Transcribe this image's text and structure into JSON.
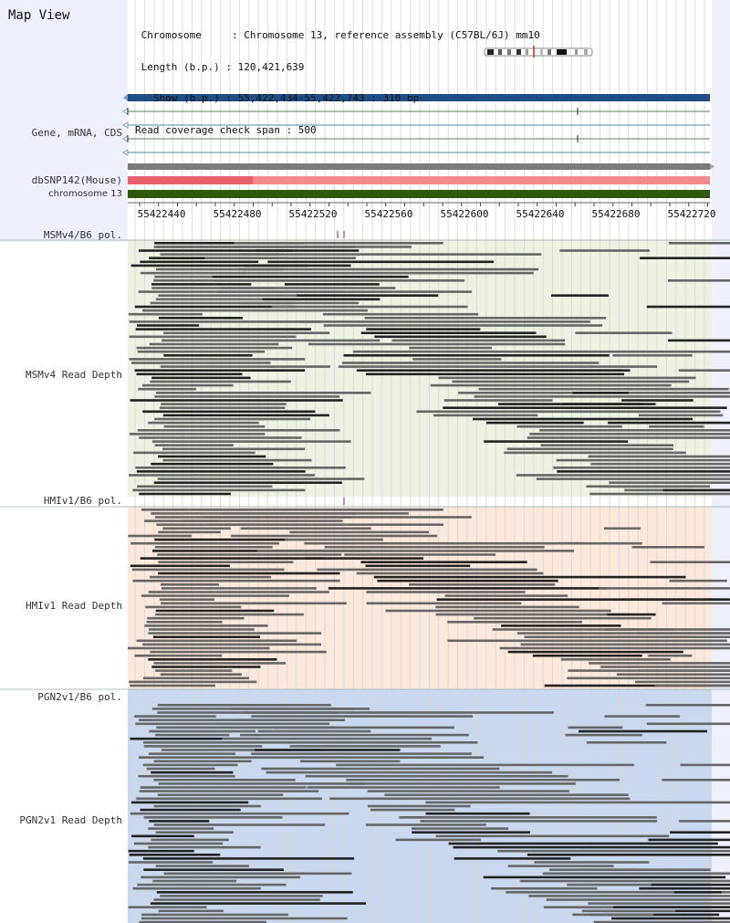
{
  "view": {
    "title": "Map View",
    "info_lines": [
      " Chromosome     : Chromosome 13, reference assembly (C57BL/6J) mm10",
      " Length (b.p.) : 120,421,639",
      "   Show (b.p.) : 55,422,434-55,422,743 : 310 bp",
      "Read coverage check span : 500"
    ]
  },
  "axis": {
    "start": 55422434,
    "end": 55422743,
    "tick_labels": [
      "55422440",
      "55422480",
      "55422520",
      "55422560",
      "55422600",
      "55422640",
      "55422680",
      "55422720"
    ]
  },
  "tracks": {
    "gene_label": "Gene, mRNA, CDS",
    "dbsnp_label": "dbSNP142(Mouse)",
    "chromosome_label": "chromosome 13"
  },
  "strains": [
    {
      "pol_label": "MSMv4/B6 pol.",
      "depth_label": "MSMv4 Read Depth",
      "bg_color": "#eef2e2"
    },
    {
      "pol_label": "HMIv1/B6 pol.",
      "depth_label": "HMIv1 Read Depth",
      "bg_color": "#fce9dc"
    },
    {
      "pol_label": "PGN2v1/B6 pol.",
      "depth_label": "PGN2v1 Read Depth",
      "bg_color": "#c8d9ef"
    }
  ],
  "colors": {
    "gene_blue": "#1f4e86",
    "snp_pink": "#f48a90",
    "snp_red": "#e8606c",
    "chromosome_green": "#2f5a0c",
    "read_gray": "#666666",
    "read_dark": "#222222",
    "polymorphism_mark": "#9b1c6d"
  }
}
